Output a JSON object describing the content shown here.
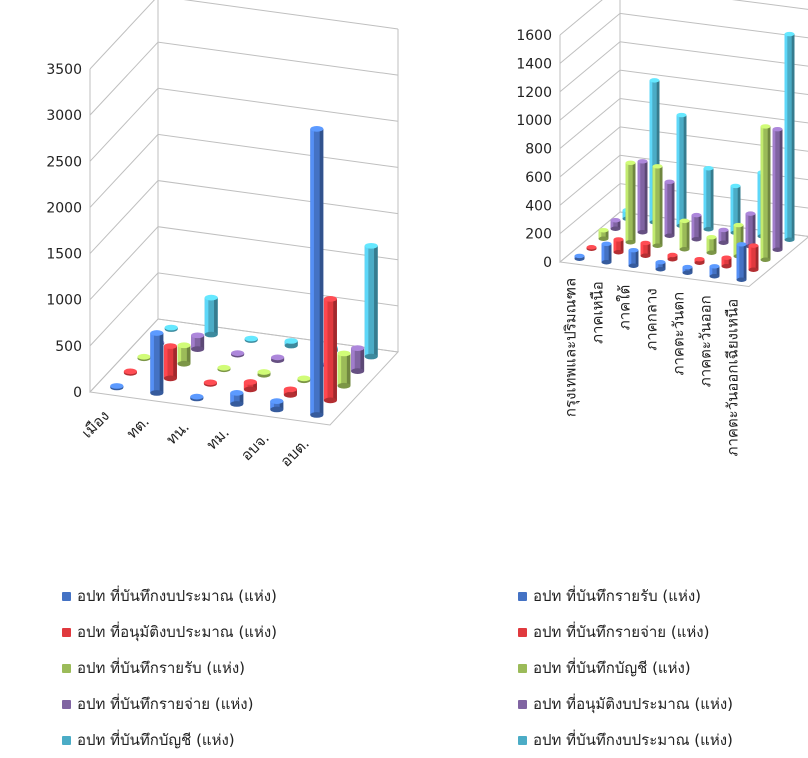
{
  "chart_data": [
    {
      "type": "bar",
      "categories": [
        "เมือง",
        "ทต.",
        "ทน.",
        "ทม.",
        "อบจ.",
        "อบต."
      ],
      "yticks": [
        0,
        500,
        1000,
        1500,
        2000,
        2500,
        3000,
        3500
      ],
      "ylim": [
        0,
        3500
      ],
      "grid": true,
      "legend_position": "bottom",
      "series": [
        {
          "name": "อปท ที่บันทึกงบประมาณ (แห่ง)",
          "color": "#4472C4",
          "values": [
            5,
            650,
            20,
            120,
            90,
            3100
          ]
        },
        {
          "name": "อปท ที่อนุมัติงบประมาณ (แห่ง)",
          "color": "#E0393E",
          "values": [
            2,
            350,
            10,
            80,
            60,
            1100
          ]
        },
        {
          "name": "อปท ที่บันทึกรายรับ (แห่ง)",
          "color": "#9BBB59",
          "values": [
            2,
            200,
            10,
            30,
            20,
            350
          ]
        },
        {
          "name": "อปท ที่บันทึกรายจ่าย (แห่ง)",
          "color": "#8064A2",
          "values": [
            2,
            150,
            10,
            30,
            20,
            250
          ]
        },
        {
          "name": "อปท ที่บันทึกบัญชี (แห่ง)",
          "color": "#4BACC6",
          "values": [
            3,
            400,
            10,
            50,
            40,
            1200
          ]
        }
      ]
    },
    {
      "type": "bar",
      "categories": [
        "กรุงเทพและปริมณฑล",
        "ภาคเหนือ",
        "ภาคใต้",
        "ภาคกลาง",
        "ภาคตะวันตก",
        "ภาคตะวันออก",
        "ภาคตะวันออกเฉียงเหนือ"
      ],
      "yticks": [
        0,
        200,
        400,
        600,
        800,
        1000,
        1200,
        1400,
        1600
      ],
      "ylim": [
        0,
        1600
      ],
      "grid": true,
      "legend_position": "bottom",
      "series": [
        {
          "name": "อปท ที่บันทึกรายรับ (แห่ง)",
          "color": "#4472C4",
          "values": [
            20,
            130,
            110,
            50,
            40,
            70,
            250
          ]
        },
        {
          "name": "อปท ที่บันทึกรายจ่าย (แห่ง)",
          "color": "#E0393E",
          "values": [
            10,
            90,
            90,
            30,
            25,
            60,
            170
          ]
        },
        {
          "name": "อปท ที่บันทึกบัญชี (แห่ง)",
          "color": "#9BBB59",
          "values": [
            60,
            560,
            560,
            200,
            110,
            220,
            940
          ]
        },
        {
          "name": "อปท ที่อนุมัติงบประมาณ (แห่ง)",
          "color": "#8064A2",
          "values": [
            60,
            500,
            380,
            170,
            90,
            230,
            850
          ]
        },
        {
          "name": "อปท ที่บันทึกงบประมาณ (แห่ง)",
          "color": "#4BACC6",
          "values": [
            60,
            1000,
            780,
            430,
            330,
            450,
            1450
          ]
        }
      ]
    }
  ]
}
